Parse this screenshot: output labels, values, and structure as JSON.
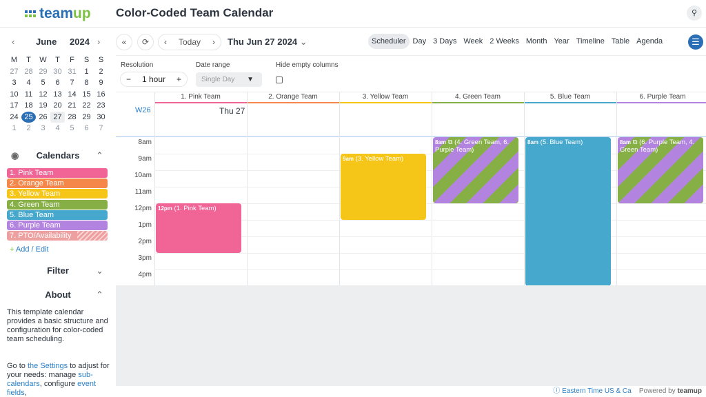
{
  "header": {
    "logo": "teamup",
    "title": "Color-Coded Team Calendar",
    "search_icon": "search-icon"
  },
  "minical": {
    "month": "June",
    "year": "2024",
    "weekdays": [
      "M",
      "T",
      "W",
      "T",
      "F",
      "S",
      "S"
    ],
    "days": [
      [
        "27",
        "o"
      ],
      [
        "28",
        "o"
      ],
      [
        "29",
        "o"
      ],
      [
        "30",
        "o"
      ],
      [
        "31",
        "o"
      ],
      [
        "1",
        ""
      ],
      [
        "2",
        ""
      ],
      [
        "3",
        ""
      ],
      [
        "4",
        ""
      ],
      [
        "5",
        ""
      ],
      [
        "6",
        ""
      ],
      [
        "7",
        ""
      ],
      [
        "8",
        ""
      ],
      [
        "9",
        ""
      ],
      [
        "10",
        ""
      ],
      [
        "11",
        ""
      ],
      [
        "12",
        ""
      ],
      [
        "13",
        ""
      ],
      [
        "14",
        ""
      ],
      [
        "15",
        ""
      ],
      [
        "16",
        ""
      ],
      [
        "17",
        ""
      ],
      [
        "18",
        ""
      ],
      [
        "19",
        ""
      ],
      [
        "20",
        ""
      ],
      [
        "21",
        ""
      ],
      [
        "22",
        ""
      ],
      [
        "23",
        ""
      ],
      [
        "24",
        ""
      ],
      [
        "25",
        "sel"
      ],
      [
        "26",
        ""
      ],
      [
        "27",
        "td"
      ],
      [
        "28",
        ""
      ],
      [
        "29",
        ""
      ],
      [
        "30",
        ""
      ],
      [
        "1",
        "o"
      ],
      [
        "2",
        "o"
      ],
      [
        "3",
        "o"
      ],
      [
        "4",
        "o"
      ],
      [
        "5",
        "o"
      ],
      [
        "6",
        "o"
      ],
      [
        "7",
        "o"
      ]
    ]
  },
  "sidebar": {
    "calendars_title": "Calendars",
    "add_edit": "Add / Edit",
    "filter_title": "Filter",
    "about_title": "About",
    "calendars": [
      {
        "label": "1. Pink Team",
        "color": "#f06595"
      },
      {
        "label": "2. Orange Team",
        "color": "#f5874a"
      },
      {
        "label": "3. Yellow Team",
        "color": "#f5c518"
      },
      {
        "label": "4. Green Team",
        "color": "#86b046"
      },
      {
        "label": "5. Blue Team",
        "color": "#46a8cc"
      },
      {
        "label": "6. Purple Team",
        "color": "#b383e0"
      },
      {
        "label": "7. PTO/Availability",
        "color": "#eea0a0"
      }
    ],
    "about_p1": "This template calendar provides a basic structure and configuration for color-coded team scheduling.",
    "about_p2_a": "Go to ",
    "about_p2_link": "the Settings",
    "about_p2_b": " to adjust for your needs: manage ",
    "about_p2_link2": "sub-calendars",
    "about_p2_c": ", configure ",
    "about_p2_link3": "event fields",
    "about_p2_d": ","
  },
  "toolbar": {
    "today": "Today",
    "date": "Thu Jun 27 2024",
    "views": [
      "Scheduler",
      "Day",
      "3 Days",
      "Week",
      "2 Weeks",
      "Month",
      "Year",
      "Timeline",
      "Table",
      "Agenda"
    ],
    "active_view": "Scheduler"
  },
  "options": {
    "resolution_label": "Resolution",
    "resolution_value": "1 hour",
    "date_range_label": "Date range",
    "date_range_value": "Single Day",
    "hide_empty_label": "Hide empty columns",
    "hide_empty_checked": false
  },
  "scheduler": {
    "week": "W26",
    "day": "Thu 27",
    "columns": [
      {
        "label": "1. Pink Team",
        "color": "#f06595"
      },
      {
        "label": "2. Orange Team",
        "color": "#f5874a"
      },
      {
        "label": "3. Yellow Team",
        "color": "#f5c518"
      },
      {
        "label": "4. Green Team",
        "color": "#86b046"
      },
      {
        "label": "5. Blue Team",
        "color": "#46a8cc"
      },
      {
        "label": "6. Purple Team",
        "color": "#b383e0"
      }
    ],
    "hours": [
      "8am",
      "9am",
      "10am",
      "11am",
      "12pm",
      "1pm",
      "2pm",
      "3pm",
      "4pm"
    ],
    "events": [
      {
        "col": 0,
        "start": 12,
        "end": 15,
        "time": "12pm",
        "title": "(1. Pink Team)",
        "style": "#f06595"
      },
      {
        "col": 2,
        "start": 9,
        "end": 13,
        "time": "9am",
        "title": "(3. Yellow Team)",
        "style": "#f5c518"
      },
      {
        "col": 3,
        "start": 8,
        "end": 12,
        "time": "8am",
        "title": "(4. Green Team, 6. Purple Team)",
        "style": "stripe",
        "multi": true
      },
      {
        "col": 4,
        "start": 8,
        "end": 17,
        "time": "8am",
        "title": "(5. Blue Team)",
        "style": "#46a8cc"
      },
      {
        "col": 5,
        "start": 8,
        "end": 12,
        "time": "8am",
        "title": "(6. Purple Team, 4. Green Team)",
        "style": "stripe",
        "multi": true
      }
    ]
  },
  "footer": {
    "timezone": "Eastern Time US & Ca",
    "powered": "Powered by",
    "brand": "teamup"
  }
}
